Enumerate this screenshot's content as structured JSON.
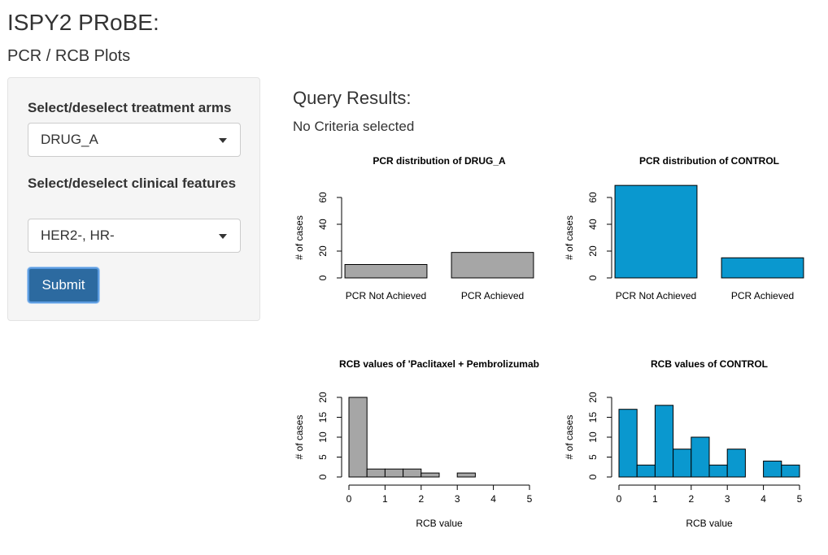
{
  "header": {
    "title": "ISPY2 PRoBE:",
    "subtitle": "PCR / RCB Plots"
  },
  "sidebar": {
    "fields": [
      {
        "label": "Select/deselect treatment arms",
        "value": "DRUG_A"
      },
      {
        "label": "Select/deselect clinical features",
        "value": "HER2-, HR-"
      }
    ],
    "button": "Submit"
  },
  "results": {
    "title": "Query Results:",
    "status": "No Criteria selected"
  },
  "chart_data": [
    {
      "type": "bar",
      "title": "PCR distribution of DRUG_A",
      "y_label": "# of cases",
      "categories": [
        "PCR Not Achieved",
        "PCR Achieved"
      ],
      "values": [
        10,
        19
      ],
      "color": "#a6a6a6",
      "ylim": [
        0,
        70
      ],
      "yticks": [
        0,
        20,
        40,
        60
      ]
    },
    {
      "type": "bar",
      "title": "PCR distribution of CONTROL",
      "y_label": "# of cases",
      "categories": [
        "PCR Not Achieved",
        "PCR Achieved"
      ],
      "values": [
        69,
        15
      ],
      "color": "#0a98cf",
      "ylim": [
        0,
        70
      ],
      "yticks": [
        0,
        20,
        40,
        60
      ]
    },
    {
      "type": "histogram",
      "title": "RCB values of 'Paclitaxel + Pembrolizumab",
      "y_label": "# of cases",
      "x_label": "RCB value",
      "bins": [
        0,
        0.5,
        1,
        1.5,
        2,
        2.5,
        3,
        3.5,
        4,
        4.5,
        5
      ],
      "values": [
        20,
        2,
        2,
        2,
        1,
        0,
        1,
        0,
        0,
        0
      ],
      "color": "#a6a6a6",
      "xlim": [
        0,
        5
      ],
      "xticks": [
        0,
        1,
        2,
        3,
        4,
        5
      ],
      "ylim": [
        0,
        20
      ],
      "yticks": [
        0,
        5,
        10,
        15,
        20
      ]
    },
    {
      "type": "histogram",
      "title": "RCB values of CONTROL",
      "y_label": "# of cases",
      "x_label": "RCB value",
      "bins": [
        0,
        0.5,
        1,
        1.5,
        2,
        2.5,
        3,
        3.5,
        4,
        4.5,
        5
      ],
      "values": [
        17,
        3,
        18,
        7,
        10,
        3,
        7,
        0,
        4,
        3
      ],
      "color": "#0a98cf",
      "xlim": [
        0,
        5
      ],
      "xticks": [
        0,
        1,
        2,
        3,
        4,
        5
      ],
      "ylim": [
        0,
        20
      ],
      "yticks": [
        0,
        5,
        10,
        15,
        20
      ]
    }
  ]
}
